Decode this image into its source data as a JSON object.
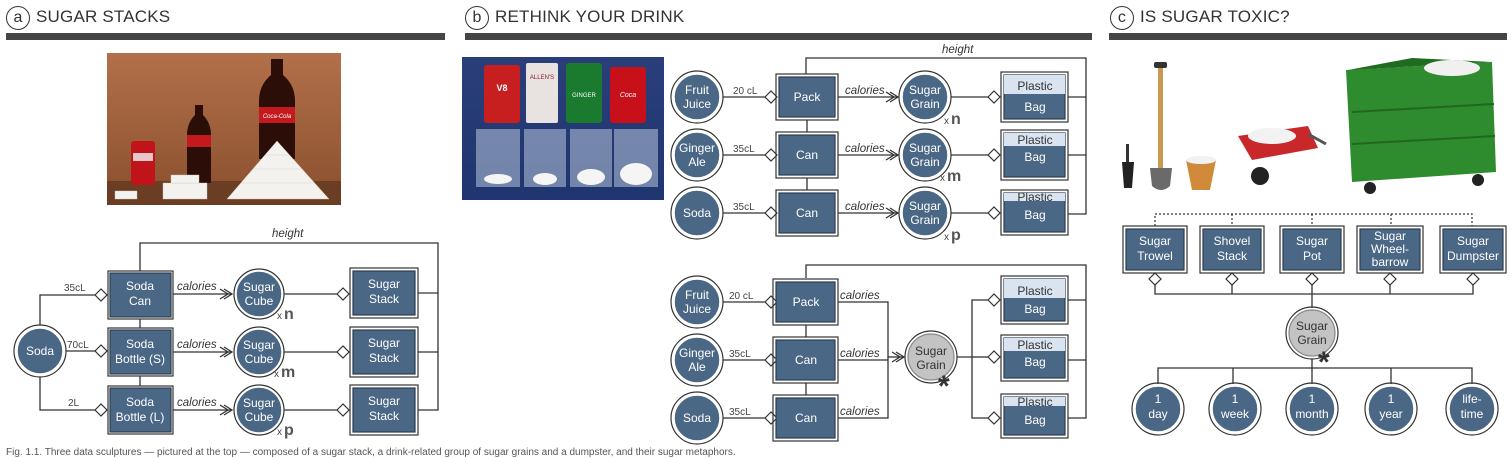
{
  "panels": {
    "a": {
      "letter": "a",
      "title": "SUGAR STACKS"
    },
    "b": {
      "letter": "b",
      "title": "RETHINK YOUR DRINK"
    },
    "c": {
      "letter": "c",
      "title": "IS SUGAR TOXIC?"
    }
  },
  "labels": {
    "height": "height",
    "calories": "calories",
    "soda": "Soda",
    "soda_can": [
      "Soda",
      "Can"
    ],
    "soda_bottle_s": [
      "Soda",
      "Bottle (S)"
    ],
    "soda_bottle_l": [
      "Soda",
      "Bottle (L)"
    ],
    "sugar_cube": [
      "Sugar",
      "Cube"
    ],
    "sugar_stack": [
      "Sugar",
      "Stack"
    ],
    "sugar_grain": [
      "Sugar",
      "Grain"
    ],
    "plastic_bag": [
      "Plastic",
      "Bag"
    ],
    "fruit_juice": [
      "Fruit",
      "Juice"
    ],
    "ginger_ale": [
      "Ginger",
      "Ale"
    ],
    "pack": "Pack",
    "can": "Can",
    "vol_35cL": "35cL",
    "vol_70cL": "70cL",
    "vol_2L": "2L",
    "vol_20cL": "20 cL",
    "vol_20cL_b": "20 cL",
    "mult_n": "n",
    "mult_m": "m",
    "mult_p": "p",
    "mult_x": "x",
    "asterisk": "*",
    "containers": [
      [
        "Sugar",
        "Trowel"
      ],
      [
        "Shovel",
        "Stack"
      ],
      [
        "Sugar",
        "Pot"
      ],
      [
        "Sugar",
        "Wheel-",
        "barrow"
      ],
      [
        "Sugar",
        "Dumpster"
      ]
    ],
    "durations": [
      [
        "1",
        "day"
      ],
      [
        "1",
        "week"
      ],
      [
        "1",
        "month"
      ],
      [
        "1",
        "year"
      ],
      [
        "life-",
        "time"
      ]
    ]
  },
  "photo_a": {
    "brand_text": "Coca-Cola"
  },
  "photo_b": {
    "can_labels": [
      "V8",
      "ALLEN'S",
      "GINGER",
      "Coca"
    ]
  },
  "caption": "Fig. 1.1. Three data sculptures — pictured at the top — composed of a sugar stack, a drink-related group of sugar grains and a dumpster, and their sugar metaphors.",
  "colors": {
    "node_fill": "#4a6785",
    "node_stroke": "#2c3e50",
    "grey_node": "#c0c0c0",
    "bar": "#454545",
    "line": "#333333"
  }
}
